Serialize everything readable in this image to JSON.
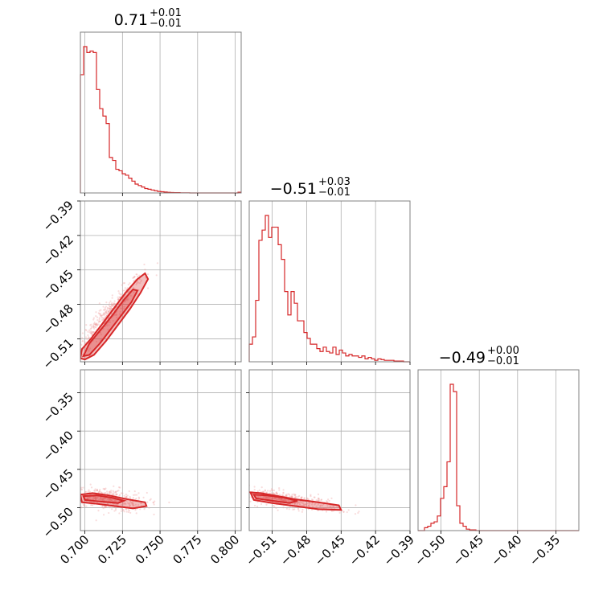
{
  "theme": {
    "color": "#d62728",
    "point_color": "#ef9a9a"
  },
  "chart_data": {
    "type": "corner",
    "parameters": [
      {
        "title_value": "0.71",
        "title_plus": "+0.01",
        "title_minus": "−0.01",
        "range": [
          0.697,
          0.804
        ],
        "ticks": [
          0.7,
          0.725,
          0.75,
          0.775,
          0.8
        ],
        "tick_labels": [
          "0.700",
          "0.725",
          "0.750",
          "0.775",
          "0.800"
        ],
        "hist": {
          "edges_start": 0.697,
          "bin_width": 0.00214,
          "counts": [
            0.8,
            0.99,
            0.95,
            0.96,
            0.95,
            0.7,
            0.57,
            0.52,
            0.47,
            0.24,
            0.22,
            0.16,
            0.15,
            0.13,
            0.12,
            0.1,
            0.08,
            0.06,
            0.05,
            0.04,
            0.03,
            0.025,
            0.02,
            0.015,
            0.01,
            0.008,
            0.006,
            0.004,
            0.003,
            0.002,
            0.002,
            0.001,
            0.001,
            0.001,
            0.0,
            0.0,
            0.0,
            0.0,
            0.0,
            0.0,
            0.0,
            0.0,
            0.0,
            0.0,
            0.0,
            0.0,
            0.0,
            0.0,
            0.0,
            0.005
          ]
        }
      },
      {
        "title_value": "−0.51",
        "title_plus": "+0.03",
        "title_minus": "−0.01",
        "range": [
          -0.53,
          -0.39
        ],
        "ticks": [
          -0.51,
          -0.48,
          -0.45,
          -0.42,
          -0.39
        ],
        "tick_labels": [
          "−0.51",
          "−0.48",
          "−0.45",
          "−0.42",
          "−0.39"
        ],
        "hist": {
          "edges_start": -0.53,
          "bin_width": 0.0028,
          "counts": [
            0.12,
            0.17,
            0.42,
            0.83,
            0.9,
            1.0,
            0.85,
            0.92,
            0.92,
            0.8,
            0.7,
            0.48,
            0.32,
            0.48,
            0.4,
            0.28,
            0.28,
            0.2,
            0.16,
            0.12,
            0.12,
            0.09,
            0.07,
            0.1,
            0.07,
            0.06,
            0.1,
            0.05,
            0.08,
            0.06,
            0.04,
            0.05,
            0.04,
            0.04,
            0.03,
            0.04,
            0.02,
            0.03,
            0.02,
            0.01,
            0.02,
            0.015,
            0.01,
            0.01,
            0.01,
            0.005,
            0.005,
            0.005,
            0.0,
            0.0
          ]
        }
      },
      {
        "title_value": "−0.49",
        "title_plus": "+0.00",
        "title_minus": "−0.01",
        "range": [
          -0.53,
          -0.32
        ],
        "ticks": [
          -0.5,
          -0.45,
          -0.4,
          -0.35
        ],
        "tick_labels": [
          "−0.50",
          "−0.45",
          "−0.40",
          "−0.35"
        ],
        "hist": {
          "edges_start": -0.53,
          "bin_width": 0.0042,
          "counts": [
            0.0,
            0.0,
            0.02,
            0.03,
            0.05,
            0.06,
            0.1,
            0.22,
            0.3,
            0.47,
            1.0,
            0.95,
            0.17,
            0.05,
            0.03,
            0.01,
            0.005,
            0.005,
            0.0,
            0.0,
            0.0,
            0.0,
            0.0,
            0.0,
            0.0,
            0.0,
            0.0,
            0.0,
            0.0,
            0.0,
            0.0,
            0.0,
            0.0,
            0.0,
            0.0,
            0.0,
            0.0,
            0.0,
            0.0,
            0.0,
            0.0,
            0.0,
            0.0,
            0.0,
            0.0,
            0.0,
            0.0,
            0.0,
            0.0,
            0.0
          ]
        }
      }
    ],
    "grid": true,
    "pairs": [
      {
        "x_param": 0,
        "y_param": 1,
        "contours": [
          {
            "level": "outer",
            "points": [
              [
                0.697,
                -0.527
              ],
              [
                0.7,
                -0.528
              ],
              [
                0.706,
                -0.524
              ],
              [
                0.714,
                -0.512
              ],
              [
                0.722,
                -0.498
              ],
              [
                0.73,
                -0.484
              ],
              [
                0.737,
                -0.47
              ],
              [
                0.742,
                -0.458
              ],
              [
                0.74,
                -0.453
              ],
              [
                0.735,
                -0.458
              ],
              [
                0.727,
                -0.47
              ],
              [
                0.719,
                -0.484
              ],
              [
                0.711,
                -0.498
              ],
              [
                0.704,
                -0.51
              ],
              [
                0.698,
                -0.519
              ]
            ]
          },
          {
            "level": "inner",
            "points": [
              [
                0.699,
                -0.525
              ],
              [
                0.703,
                -0.524
              ],
              [
                0.71,
                -0.514
              ],
              [
                0.717,
                -0.502
              ],
              [
                0.724,
                -0.49
              ],
              [
                0.731,
                -0.478
              ],
              [
                0.735,
                -0.468
              ],
              [
                0.732,
                -0.467
              ],
              [
                0.726,
                -0.476
              ],
              [
                0.718,
                -0.49
              ],
              [
                0.71,
                -0.503
              ],
              [
                0.703,
                -0.514
              ]
            ]
          }
        ],
        "scatter_center": [
          0.715,
          -0.49
        ],
        "scatter_spread": [
          0.012,
          0.018
        ],
        "scatter_corr": 0.95
      },
      {
        "x_param": 0,
        "y_param": 2,
        "contours": [
          {
            "level": "outer",
            "points": [
              [
                0.697,
                -0.483
              ],
              [
                0.705,
                -0.481
              ],
              [
                0.716,
                -0.484
              ],
              [
                0.728,
                -0.489
              ],
              [
                0.74,
                -0.493
              ],
              [
                0.741,
                -0.498
              ],
              [
                0.732,
                -0.501
              ],
              [
                0.72,
                -0.498
              ],
              [
                0.708,
                -0.495
              ],
              [
                0.698,
                -0.493
              ]
            ]
          },
          {
            "level": "inner",
            "points": [
              [
                0.699,
                -0.485
              ],
              [
                0.708,
                -0.484
              ],
              [
                0.718,
                -0.487
              ],
              [
                0.726,
                -0.491
              ],
              [
                0.722,
                -0.494
              ],
              [
                0.71,
                -0.492
              ],
              [
                0.7,
                -0.49
              ]
            ]
          }
        ],
        "scatter_center": [
          0.715,
          -0.489
        ],
        "scatter_spread": [
          0.013,
          0.008
        ],
        "scatter_corr": -0.4
      },
      {
        "x_param": 1,
        "y_param": 2,
        "contours": [
          {
            "level": "outer",
            "points": [
              [
                -0.529,
                -0.48
              ],
              [
                -0.52,
                -0.481
              ],
              [
                -0.505,
                -0.485
              ],
              [
                -0.49,
                -0.489
              ],
              [
                -0.47,
                -0.493
              ],
              [
                -0.452,
                -0.497
              ],
              [
                -0.45,
                -0.503
              ],
              [
                -0.47,
                -0.502
              ],
              [
                -0.49,
                -0.498
              ],
              [
                -0.51,
                -0.494
              ],
              [
                -0.526,
                -0.49
              ]
            ]
          },
          {
            "level": "inner",
            "points": [
              [
                -0.526,
                -0.483
              ],
              [
                -0.515,
                -0.484
              ],
              [
                -0.5,
                -0.487
              ],
              [
                -0.488,
                -0.491
              ],
              [
                -0.495,
                -0.494
              ],
              [
                -0.51,
                -0.491
              ],
              [
                -0.524,
                -0.488
              ]
            ]
          }
        ],
        "scatter_center": [
          -0.495,
          -0.49
        ],
        "scatter_spread": [
          0.022,
          0.007
        ],
        "scatter_corr": -0.7
      }
    ]
  }
}
